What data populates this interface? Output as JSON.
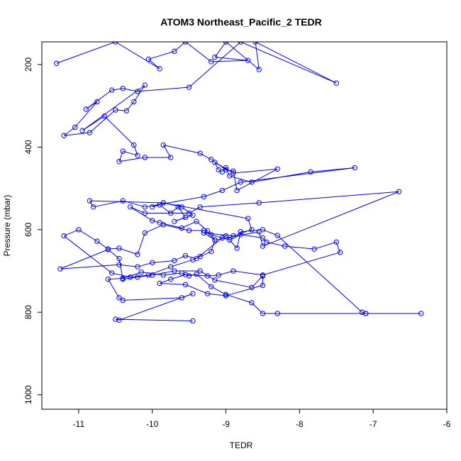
{
  "chart_data": {
    "type": "line",
    "title": "ATOM3 Northeast_Pacific_2 TEDR",
    "xlabel": "TEDR",
    "ylabel": "Pressure (mbar)",
    "xlim": [
      -11.5,
      -6
    ],
    "ylim": [
      1035,
      145
    ],
    "x_ticks": [
      -11,
      -10,
      -9,
      -8,
      -7,
      -6
    ],
    "y_ticks": [
      200,
      400,
      600,
      800,
      1000
    ],
    "grid": false,
    "legend": "none",
    "series_color": "#0000ff",
    "marker": "open-circle",
    "series": [
      {
        "x": [
          -11.3,
          -10.5,
          -9.9,
          -10.05,
          -9.7,
          -9.55,
          -9.2,
          -8.7,
          -9.15,
          -9.0,
          -8.55,
          -8.6,
          -7.5,
          -8.8,
          -9.5,
          -10.2,
          -10.4,
          -10.55,
          -10.9,
          -10.75,
          -11.05,
          -11.2,
          -10.85,
          -10.5,
          -10.35,
          -10.25,
          -10.1,
          -10.95,
          -10.65,
          -10.25,
          -10.2,
          -10.4,
          -10.45,
          -10.1,
          -9.75,
          -9.85,
          -9.35,
          -9.2,
          -9.0,
          -8.9,
          -8.85,
          -8.3,
          -8.9,
          -9.15,
          -9.1,
          -9.05,
          -9.0,
          -8.95,
          -8.65,
          -7.85,
          -7.25,
          -8.8,
          -9.05,
          -9.3,
          -10.1,
          -10.4,
          -10.8,
          -10.85,
          -9.85,
          -9.6,
          -9.45,
          -9.7,
          -9.55,
          -9.65,
          -9.75,
          -9.9,
          -10.0,
          -9.85,
          -8.7,
          -8.65,
          -8.9,
          -9.3,
          -9.15,
          -8.55,
          -8.5,
          -6.65,
          -8.55,
          -9.35,
          -9.5,
          -10.1,
          -10.3,
          -10.0,
          -9.9,
          -9.6,
          -9.4,
          -9.25,
          -9.15,
          -9.2,
          -9.35,
          -9.45,
          -9.75,
          -10.05,
          -10.3,
          -10.55,
          -11.2,
          -11.0,
          -10.75,
          -10.6,
          -10.45,
          -10.2,
          -10.1,
          -9.85,
          -9.5,
          -9.3,
          -9.2,
          -8.95,
          -8.8,
          -8.5,
          -8.45,
          -8.2,
          -7.8,
          -7.5,
          -7.45,
          -8.5,
          -8.9,
          -9.1,
          -9.25,
          -9.55,
          -9.75,
          -9.9,
          -9.55,
          -9.25,
          -9.0,
          -8.5,
          -8.5,
          -8.65,
          -9.15,
          -9.35,
          -9.7,
          -10.0,
          -10.2,
          -10.4,
          -10.45,
          -10.6,
          -11.25,
          -10.45,
          -10.2,
          -10.0,
          -9.7,
          -9.55,
          -9.4,
          -9.05,
          -9.0,
          -8.85,
          -8.8,
          -8.5,
          -8.3,
          -7.15,
          -7.1,
          -6.35,
          -7.1,
          -8.3,
          -8.5,
          -8.65,
          -9.0,
          -9.2,
          -9.4,
          -9.5,
          -9.6,
          -9.85,
          -10.15,
          -10.4,
          -10.6,
          -10.45,
          -10.4,
          -9.6,
          -9.45,
          -10.45,
          -10.5,
          -9.45
        ],
        "y": [
          197,
          145,
          210,
          187,
          168,
          145,
          193,
          190,
          182,
          145,
          212,
          145,
          245,
          145,
          255,
          265,
          258,
          262,
          308,
          290,
          352,
          372,
          365,
          310,
          312,
          290,
          250,
          360,
          325,
          395,
          420,
          410,
          435,
          425,
          425,
          395,
          415,
          430,
          455,
          458,
          505,
          453,
          463,
          437,
          455,
          460,
          450,
          470,
          485,
          460,
          450,
          485,
          505,
          520,
          545,
          530,
          545,
          530,
          535,
          545,
          565,
          580,
          570,
          545,
          560,
          540,
          545,
          535,
          573,
          600,
          615,
          608,
          625,
          605,
          640,
          508,
          535,
          545,
          560,
          560,
          545,
          578,
          583,
          596,
          580,
          603,
          625,
          653,
          665,
          673,
          690,
          710,
          715,
          705,
          615,
          600,
          628,
          647,
          645,
          660,
          608,
          588,
          602,
          602,
          612,
          625,
          612,
          620,
          630,
          640,
          647,
          630,
          655,
          710,
          700,
          710,
          712,
          709,
          720,
          730,
          733,
          755,
          760,
          735,
          712,
          740,
          722,
          700,
          700,
          710,
          715,
          720,
          670,
          648,
          695,
          685,
          690,
          680,
          675,
          663,
          670,
          620,
          615,
          645,
          605,
          600,
          614,
          800,
          803,
          803,
          803,
          803,
          803,
          777,
          757,
          738,
          708,
          712,
          705,
          710,
          703,
          718,
          720,
          765,
          771,
          765,
          755,
          819,
          817,
          821
        ]
      }
    ]
  }
}
